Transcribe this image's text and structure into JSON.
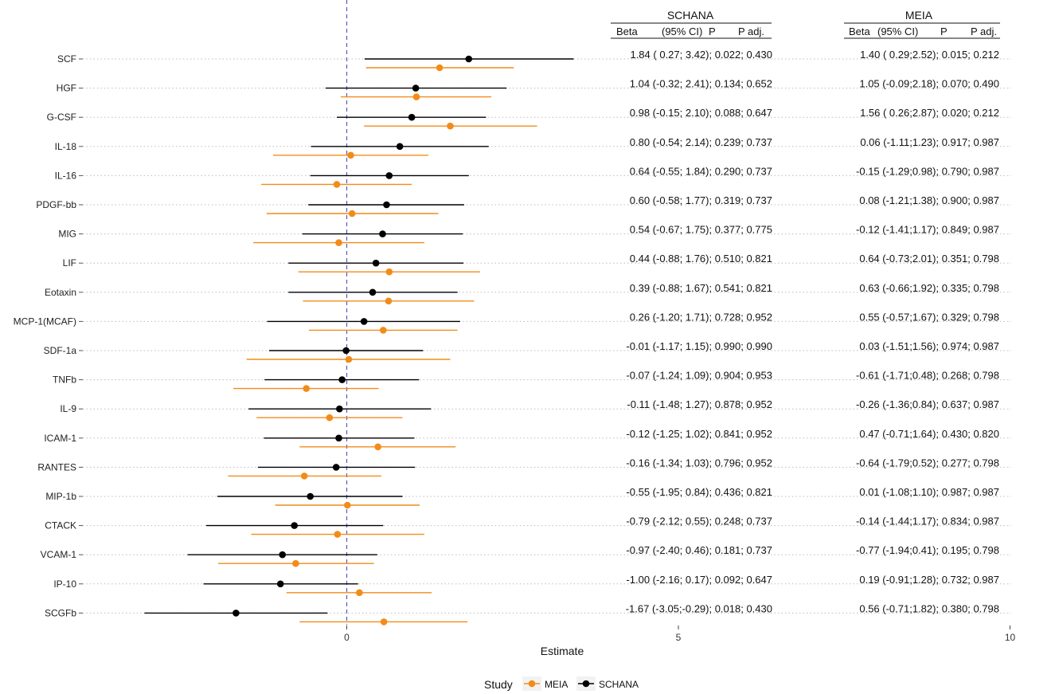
{
  "chart_data": {
    "type": "forest",
    "xlabel": "Estimate",
    "xticks": [
      0,
      5,
      10
    ],
    "xlim": [
      -3.1,
      10.2
    ],
    "reference_line": 0,
    "legend": {
      "title": "Study",
      "position": "bottom",
      "entries": [
        "MEIA",
        "SCHANA"
      ]
    },
    "series": [
      {
        "name": "SCHANA",
        "color": "#000000"
      },
      {
        "name": "MEIA",
        "color": "#f28c18"
      }
    ],
    "tables": [
      {
        "title": "SCHANA",
        "headers": [
          "Beta",
          "(95% CI)",
          "P",
          "P adj."
        ]
      },
      {
        "title": "MEIA",
        "headers": [
          "Beta",
          "(95% CI)",
          "P",
          "P adj."
        ]
      }
    ],
    "rows": [
      {
        "label": "SCF",
        "schana": {
          "est": 1.84,
          "lo": 0.27,
          "hi": 3.42
        },
        "meia": {
          "est": 1.4,
          "lo": 0.29,
          "hi": 2.52
        },
        "schana_text": "1.84 ( 0.27; 3.42); 0.022; 0.430",
        "meia_text": "1.40 ( 0.29;2.52); 0.015; 0.212"
      },
      {
        "label": "HGF",
        "schana": {
          "est": 1.04,
          "lo": -0.32,
          "hi": 2.41
        },
        "meia": {
          "est": 1.05,
          "lo": -0.09,
          "hi": 2.18
        },
        "schana_text": "1.04 (-0.32; 2.41); 0.134; 0.652",
        "meia_text": "1.05 (-0.09;2.18); 0.070; 0.490"
      },
      {
        "label": "G-CSF",
        "schana": {
          "est": 0.98,
          "lo": -0.15,
          "hi": 2.1
        },
        "meia": {
          "est": 1.56,
          "lo": 0.26,
          "hi": 2.87
        },
        "schana_text": "0.98 (-0.15; 2.10); 0.088; 0.647",
        "meia_text": "1.56 ( 0.26;2.87); 0.020; 0.212"
      },
      {
        "label": "IL-18",
        "schana": {
          "est": 0.8,
          "lo": -0.54,
          "hi": 2.14
        },
        "meia": {
          "est": 0.06,
          "lo": -1.11,
          "hi": 1.23
        },
        "schana_text": "0.80 (-0.54; 2.14); 0.239; 0.737",
        "meia_text": "0.06 (-1.11;1.23); 0.917; 0.987"
      },
      {
        "label": "IL-16",
        "schana": {
          "est": 0.64,
          "lo": -0.55,
          "hi": 1.84
        },
        "meia": {
          "est": -0.15,
          "lo": -1.29,
          "hi": 0.98
        },
        "schana_text": "0.64 (-0.55; 1.84); 0.290; 0.737",
        "meia_text": "-0.15 (-1.29;0.98); 0.790; 0.987"
      },
      {
        "label": "PDGF-bb",
        "schana": {
          "est": 0.6,
          "lo": -0.58,
          "hi": 1.77
        },
        "meia": {
          "est": 0.08,
          "lo": -1.21,
          "hi": 1.38
        },
        "schana_text": "0.60 (-0.58; 1.77); 0.319; 0.737",
        "meia_text": "0.08 (-1.21;1.38); 0.900; 0.987"
      },
      {
        "label": "MIG",
        "schana": {
          "est": 0.54,
          "lo": -0.67,
          "hi": 1.75
        },
        "meia": {
          "est": -0.12,
          "lo": -1.41,
          "hi": 1.17
        },
        "schana_text": "0.54 (-0.67; 1.75); 0.377; 0.775",
        "meia_text": "-0.12 (-1.41;1.17); 0.849; 0.987"
      },
      {
        "label": "LIF",
        "schana": {
          "est": 0.44,
          "lo": -0.88,
          "hi": 1.76
        },
        "meia": {
          "est": 0.64,
          "lo": -0.73,
          "hi": 2.01
        },
        "schana_text": "0.44 (-0.88; 1.76); 0.510; 0.821",
        "meia_text": "0.64 (-0.73;2.01); 0.351; 0.798"
      },
      {
        "label": "Eotaxin",
        "schana": {
          "est": 0.39,
          "lo": -0.88,
          "hi": 1.67
        },
        "meia": {
          "est": 0.63,
          "lo": -0.66,
          "hi": 1.92
        },
        "schana_text": "0.39 (-0.88; 1.67); 0.541; 0.821",
        "meia_text": "0.63 (-0.66;1.92); 0.335; 0.798"
      },
      {
        "label": "MCP-1(MCAF)",
        "schana": {
          "est": 0.26,
          "lo": -1.2,
          "hi": 1.71
        },
        "meia": {
          "est": 0.55,
          "lo": -0.57,
          "hi": 1.67
        },
        "schana_text": "0.26 (-1.20; 1.71); 0.728; 0.952",
        "meia_text": "0.55 (-0.57;1.67); 0.329; 0.798"
      },
      {
        "label": "SDF-1a",
        "schana": {
          "est": -0.01,
          "lo": -1.17,
          "hi": 1.15
        },
        "meia": {
          "est": 0.03,
          "lo": -1.51,
          "hi": 1.56
        },
        "schana_text": "-0.01 (-1.17; 1.15); 0.990; 0.990",
        "meia_text": "0.03 (-1.51;1.56); 0.974; 0.987"
      },
      {
        "label": "TNFb",
        "schana": {
          "est": -0.07,
          "lo": -1.24,
          "hi": 1.09
        },
        "meia": {
          "est": -0.61,
          "lo": -1.71,
          "hi": 0.48
        },
        "schana_text": "-0.07 (-1.24; 1.09); 0.904; 0.953",
        "meia_text": "-0.61 (-1.71;0.48); 0.268; 0.798"
      },
      {
        "label": "IL-9",
        "schana": {
          "est": -0.11,
          "lo": -1.48,
          "hi": 1.27
        },
        "meia": {
          "est": -0.26,
          "lo": -1.36,
          "hi": 0.84
        },
        "schana_text": "-0.11 (-1.48; 1.27); 0.878; 0.952",
        "meia_text": "-0.26 (-1.36;0.84); 0.637; 0.987"
      },
      {
        "label": "ICAM-1",
        "schana": {
          "est": -0.12,
          "lo": -1.25,
          "hi": 1.02
        },
        "meia": {
          "est": 0.47,
          "lo": -0.71,
          "hi": 1.64
        },
        "schana_text": "-0.12 (-1.25; 1.02); 0.841; 0.952",
        "meia_text": "0.47 (-0.71;1.64); 0.430; 0.820"
      },
      {
        "label": "RANTES",
        "schana": {
          "est": -0.16,
          "lo": -1.34,
          "hi": 1.03
        },
        "meia": {
          "est": -0.64,
          "lo": -1.79,
          "hi": 0.52
        },
        "schana_text": "-0.16 (-1.34; 1.03); 0.796; 0.952",
        "meia_text": "-0.64 (-1.79;0.52); 0.277; 0.798"
      },
      {
        "label": "MIP-1b",
        "schana": {
          "est": -0.55,
          "lo": -1.95,
          "hi": 0.84
        },
        "meia": {
          "est": 0.01,
          "lo": -1.08,
          "hi": 1.1
        },
        "schana_text": "-0.55 (-1.95; 0.84); 0.436; 0.821",
        "meia_text": "0.01 (-1.08;1.10); 0.987; 0.987"
      },
      {
        "label": "CTACK",
        "schana": {
          "est": -0.79,
          "lo": -2.12,
          "hi": 0.55
        },
        "meia": {
          "est": -0.14,
          "lo": -1.44,
          "hi": 1.17
        },
        "schana_text": "-0.79 (-2.12; 0.55); 0.248; 0.737",
        "meia_text": "-0.14 (-1.44;1.17); 0.834; 0.987"
      },
      {
        "label": "VCAM-1",
        "schana": {
          "est": -0.97,
          "lo": -2.4,
          "hi": 0.46
        },
        "meia": {
          "est": -0.77,
          "lo": -1.94,
          "hi": 0.41
        },
        "schana_text": "-0.97 (-2.40; 0.46); 0.181; 0.737",
        "meia_text": "-0.77 (-1.94;0.41); 0.195; 0.798"
      },
      {
        "label": "IP-10",
        "schana": {
          "est": -1.0,
          "lo": -2.16,
          "hi": 0.17
        },
        "meia": {
          "est": 0.19,
          "lo": -0.91,
          "hi": 1.28
        },
        "schana_text": "-1.00 (-2.16; 0.17); 0.092; 0.647",
        "meia_text": "0.19 (-0.91;1.28); 0.732; 0.987"
      },
      {
        "label": "SCGFb",
        "schana": {
          "est": -1.67,
          "lo": -3.05,
          "hi": -0.29
        },
        "meia": {
          "est": 0.56,
          "lo": -0.71,
          "hi": 1.82
        },
        "schana_text": "-1.67 (-3.05;-0.29); 0.018; 0.430",
        "meia_text": "0.56 (-0.71;1.82); 0.380; 0.798"
      }
    ]
  }
}
